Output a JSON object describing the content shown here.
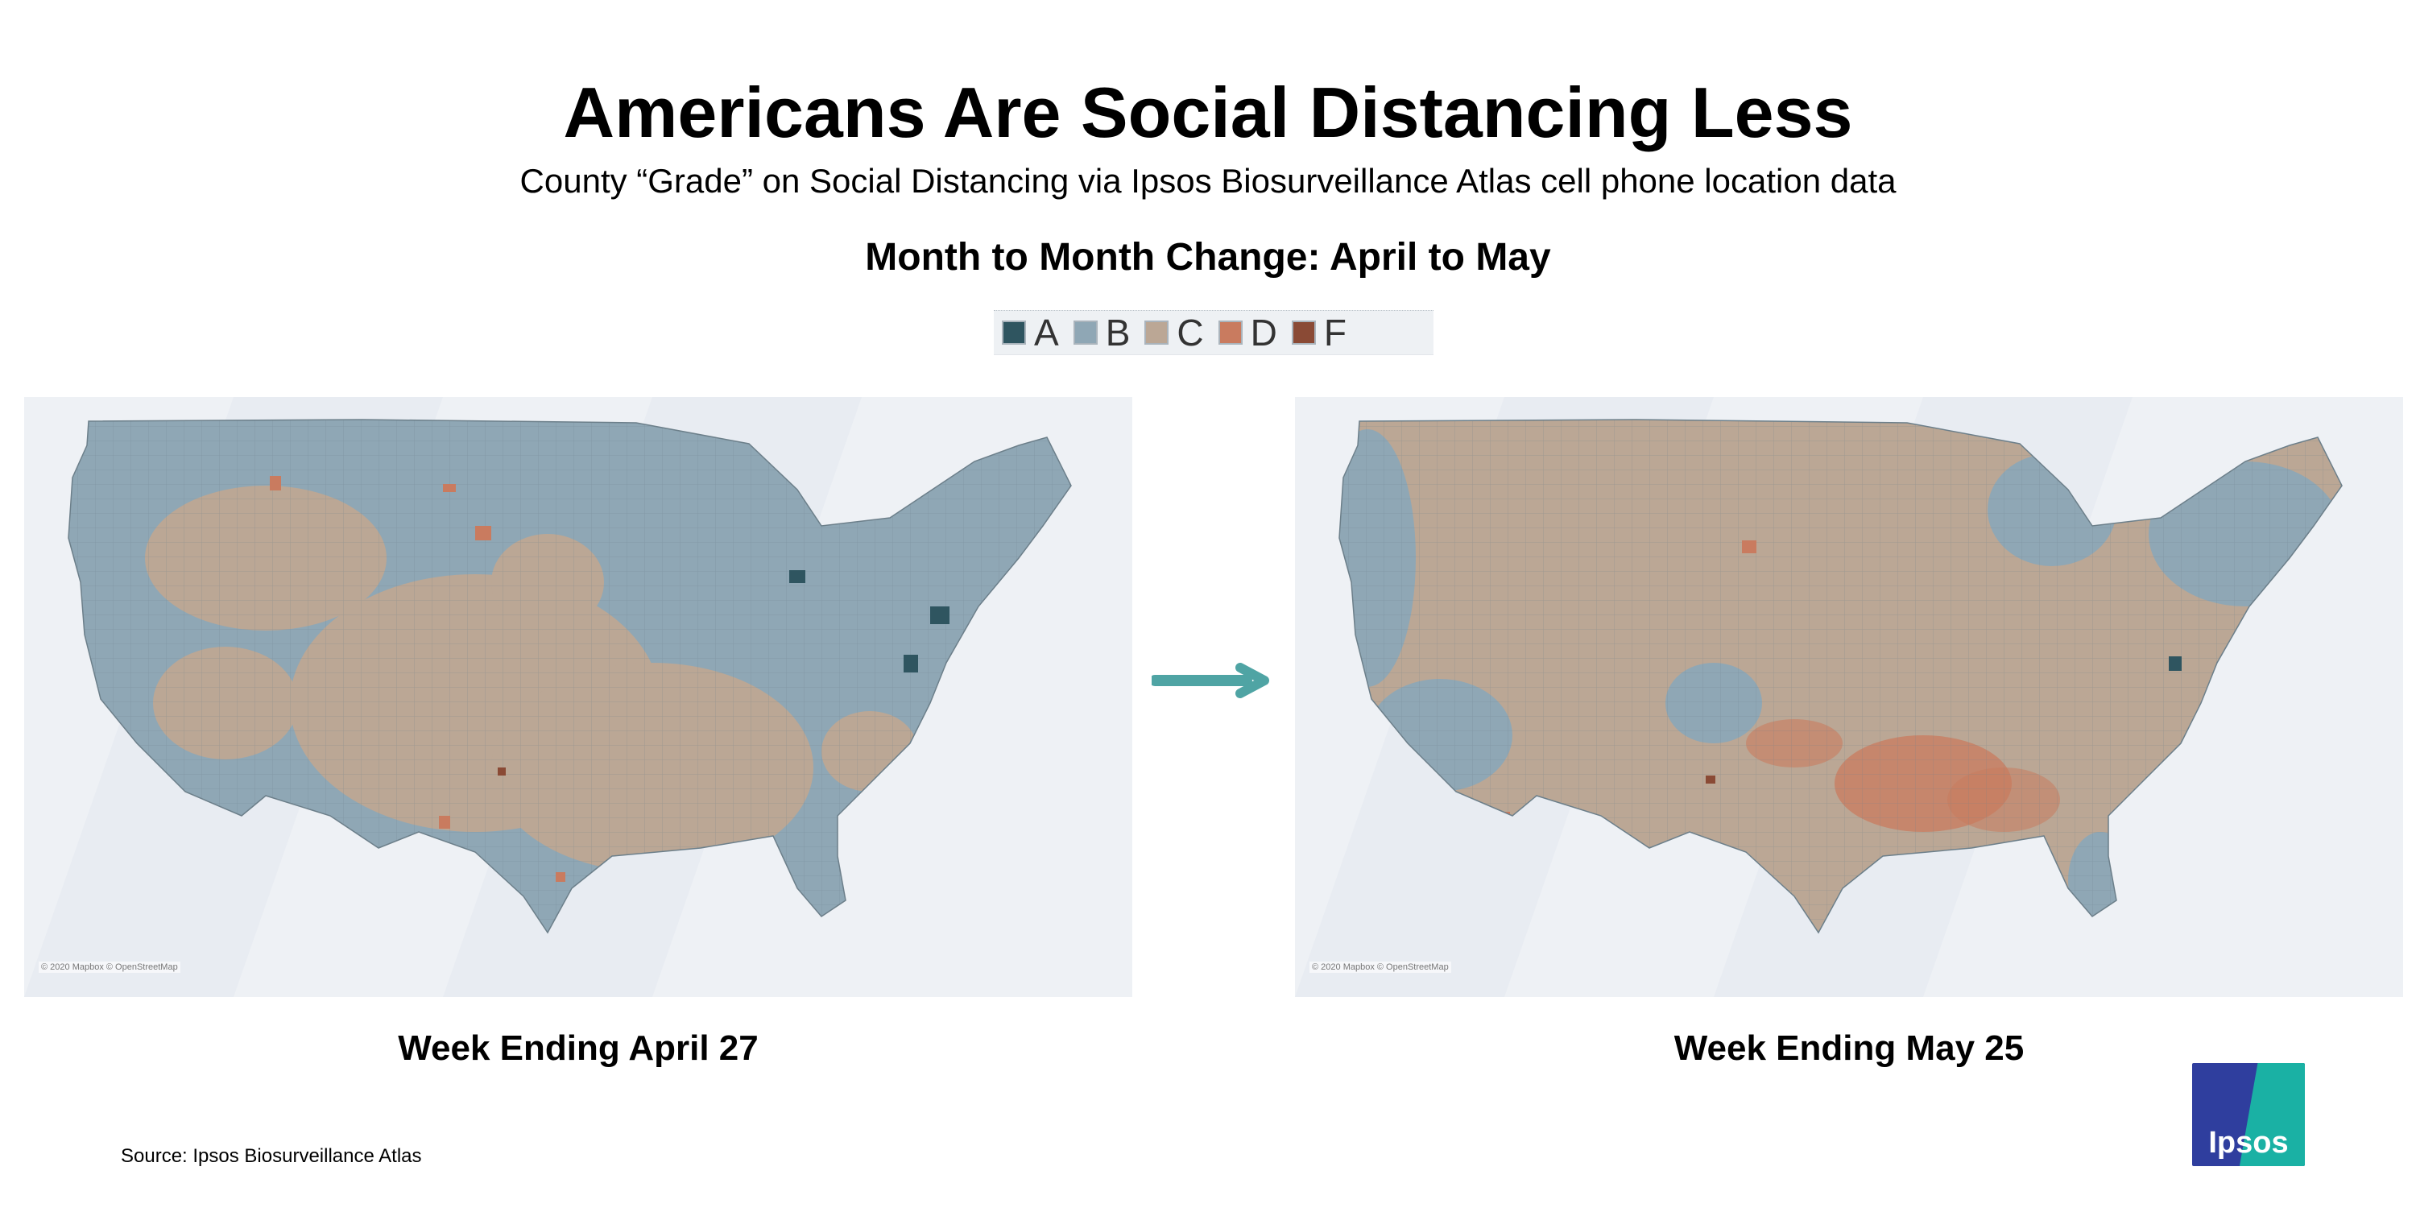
{
  "header": {
    "title": "Americans Are Social Distancing Less",
    "subtitle": "County “Grade” on Social Distancing via Ipsos Biosurveillance Atlas cell phone location data",
    "section_title": "Month to Month Change: April to May"
  },
  "legend": {
    "items": [
      {
        "label": "A",
        "color": "#2f5560"
      },
      {
        "label": "B",
        "color": "#8fa7b5"
      },
      {
        "label": "C",
        "color": "#bba795"
      },
      {
        "label": "D",
        "color": "#c97b5f"
      },
      {
        "label": "F",
        "color": "#8a4a35"
      }
    ]
  },
  "maps": [
    {
      "caption": "Week Ending April 27",
      "attribution": "© 2020 Mapbox © OpenStreetMap",
      "dominant_grades": [
        "B",
        "C"
      ],
      "notable_grade_a_regions": [
        "New York City area",
        "Washington DC area",
        "Detroit area"
      ]
    },
    {
      "caption": "Week Ending May 25",
      "attribution": "© 2020 Mapbox © OpenStreetMap",
      "dominant_grades": [
        "C",
        "B"
      ],
      "notable_grade_d_regions": [
        "South",
        "Texas",
        "Mississippi valley"
      ]
    }
  ],
  "arrow": {
    "icon": "right-arrow-icon",
    "color": "#4fa4a4"
  },
  "footer": {
    "source": "Source: Ipsos Biosurveillance Atlas",
    "logo_text": "Ipsos"
  }
}
